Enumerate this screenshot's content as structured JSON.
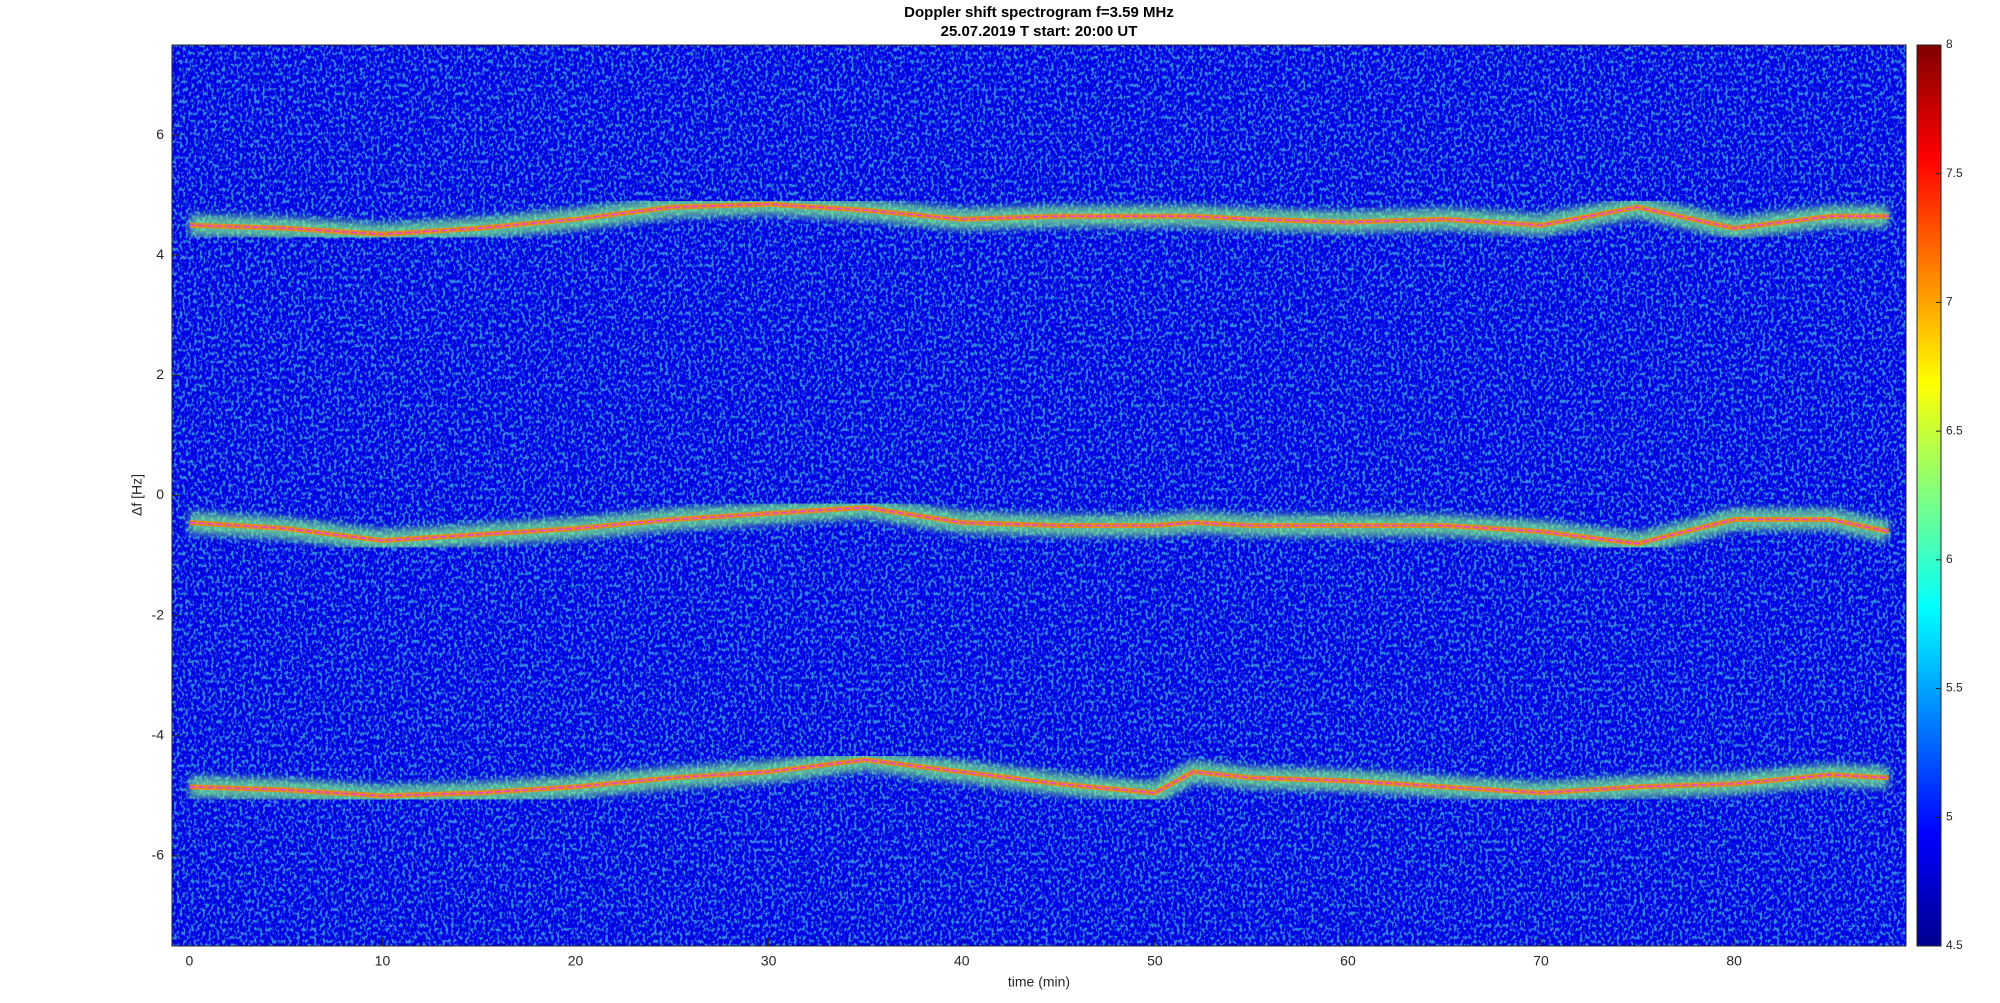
{
  "chart_data": {
    "type": "spectrogram",
    "title": "Doppler shift spectrogram f=3.59 MHz",
    "subtitle": "25.07.2019   T start: 20:00 UT",
    "x_label": "time (min)",
    "y_label": "Δf [Hz]",
    "xlim": [
      -0.9,
      88.9
    ],
    "xticks": [
      0,
      10,
      20,
      30,
      40,
      50,
      60,
      70,
      80
    ],
    "ylim": [
      -7.5,
      7.5
    ],
    "yticks": [
      -6,
      -4,
      -2,
      0,
      2,
      4,
      6
    ],
    "colormap": "jet",
    "clim": [
      4.5,
      8
    ],
    "cticks": [
      4.5,
      5,
      5.5,
      6,
      6.5,
      7,
      7.5,
      8
    ],
    "x": [
      0,
      5,
      10,
      15,
      20,
      25,
      30,
      35,
      40,
      45,
      50,
      52,
      55,
      60,
      65,
      70,
      75,
      80,
      85,
      88
    ],
    "series": [
      {
        "color": "#e040e0",
        "values": [
          4.5,
          4.45,
          4.35,
          4.45,
          4.6,
          4.8,
          4.85,
          4.75,
          4.6,
          4.65,
          4.65,
          4.65,
          4.6,
          4.55,
          4.6,
          4.5,
          4.8,
          4.45,
          4.65,
          4.65
        ]
      },
      {
        "color": "#e040e0",
        "values": [
          -0.45,
          -0.55,
          -0.75,
          -0.65,
          -0.55,
          -0.4,
          -0.3,
          -0.2,
          -0.45,
          -0.5,
          -0.5,
          -0.45,
          -0.5,
          -0.5,
          -0.5,
          -0.6,
          -0.8,
          -0.4,
          -0.4,
          -0.6
        ]
      },
      {
        "color": "#e040e0",
        "values": [
          -4.85,
          -4.9,
          -5.0,
          -4.95,
          -4.85,
          -4.7,
          -4.6,
          -4.4,
          -4.6,
          -4.8,
          -4.95,
          -4.6,
          -4.7,
          -4.75,
          -4.85,
          -4.95,
          -4.85,
          -4.8,
          -4.65,
          -4.7
        ]
      }
    ]
  }
}
